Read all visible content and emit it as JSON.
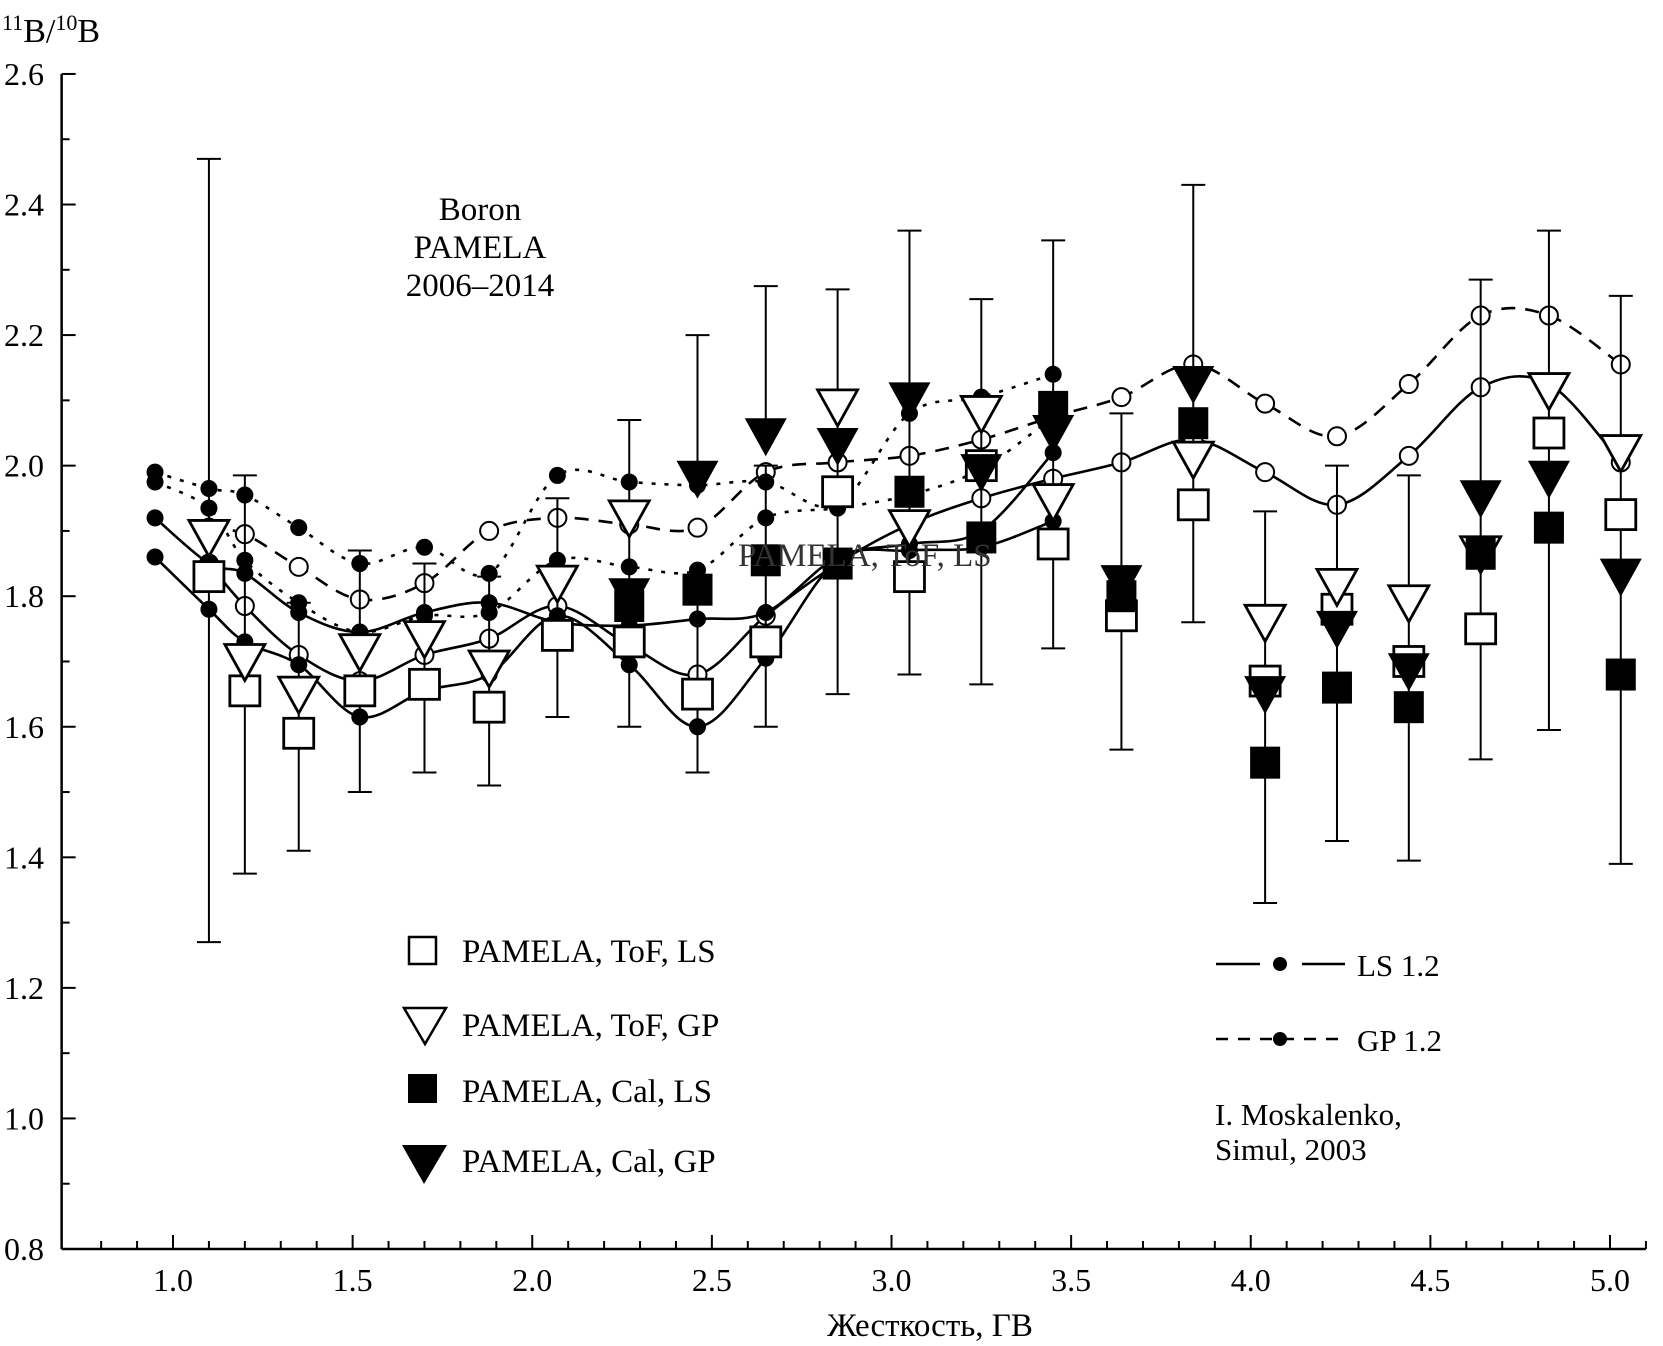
{
  "chart_data": {
    "type": "scatter",
    "title": "",
    "xlabel": "Жесткость, ГВ",
    "ylabel": {
      "prefix_sup": "11",
      "base": "B/",
      "mid_sup": "10",
      "end": "B"
    },
    "xlim": [
      0.69,
      5.1
    ],
    "ylim": [
      0.8,
      2.6
    ],
    "x_ticks": [
      "1.0",
      "1.5",
      "2.0",
      "2.5",
      "3.0",
      "3.5",
      "4.0",
      "4.5",
      "5.0"
    ],
    "x_tick_values": [
      1.0,
      1.5,
      2.0,
      2.5,
      3.0,
      3.5,
      4.0,
      4.5,
      5.0
    ],
    "y_ticks": [
      "0.8",
      "1.0",
      "1.2",
      "1.4",
      "1.6",
      "1.8",
      "2.0",
      "2.2",
      "2.4",
      "2.6"
    ],
    "y_tick_values": [
      0.8,
      1.0,
      1.2,
      1.4,
      1.6,
      1.8,
      2.0,
      2.2,
      2.4,
      2.6
    ],
    "grid": false,
    "annotation": [
      "Boron",
      "PAMELA",
      "2006–2014"
    ],
    "overlap_label": "PAMELA, ToF, LS",
    "credit": [
      "I. Moskalenko,",
      "Simul, 2003"
    ],
    "legend_left": [
      {
        "name": "PAMELA, ToF, LS",
        "marker": "open-square"
      },
      {
        "name": "PAMELA, ToF, GP",
        "marker": "open-triangle-down"
      },
      {
        "name": "PAMELA, Cal, LS",
        "marker": "filled-square"
      },
      {
        "name": "PAMELA, Cal, GP",
        "marker": "filled-triangle-down"
      }
    ],
    "legend_right": [
      {
        "name": "LS 1.2",
        "style": "solid"
      },
      {
        "name": "GP 1.2",
        "style": "dashed"
      }
    ],
    "series": [
      {
        "name": "PAMELA, ToF, LS",
        "marker": "open-square",
        "points": [
          {
            "x": 1.1,
            "y": 1.83,
            "lo": 1.27,
            "hi": 2.47
          },
          {
            "x": 1.2,
            "y": 1.655,
            "lo": 1.375,
            "hi": 1.985
          },
          {
            "x": 1.35,
            "y": 1.59,
            "lo": 1.41,
            "hi": 1.79
          },
          {
            "x": 1.52,
            "y": 1.655,
            "lo": 1.5,
            "hi": 1.87
          },
          {
            "x": 1.7,
            "y": 1.665,
            "lo": 1.53,
            "hi": 1.85
          },
          {
            "x": 1.88,
            "y": 1.63,
            "lo": 1.51,
            "hi": 1.83
          },
          {
            "x": 2.07,
            "y": 1.74,
            "lo": 1.615,
            "hi": 1.95
          },
          {
            "x": 2.27,
            "y": 1.73,
            "lo": 1.6,
            "hi": 2.07
          },
          {
            "x": 2.46,
            "y": 1.65,
            "lo": 1.53,
            "hi": 1.83
          },
          {
            "x": 2.65,
            "y": 1.73,
            "lo": 1.6,
            "hi": 2.0
          },
          {
            "x": 2.85,
            "y": 1.96,
            "lo": 1.65,
            "hi": 2.27
          },
          {
            "x": 3.05,
            "y": 1.83,
            "lo": 1.68,
            "hi": 2.36
          },
          {
            "x": 3.25,
            "y": 2.0,
            "lo": 1.665,
            "hi": 2.255
          },
          {
            "x": 3.45,
            "y": 1.88,
            "lo": 1.72,
            "hi": 2.345
          },
          {
            "x": 3.64,
            "y": 1.77,
            "lo": 1.565,
            "hi": 2.08
          },
          {
            "x": 3.84,
            "y": 1.94,
            "lo": 1.76,
            "hi": 2.43
          },
          {
            "x": 4.04,
            "y": 1.67,
            "lo": 1.33,
            "hi": 1.93
          },
          {
            "x": 4.24,
            "y": 1.78,
            "lo": 1.425,
            "hi": 2.0
          },
          {
            "x": 4.44,
            "y": 1.7,
            "lo": 1.395,
            "hi": 1.985
          },
          {
            "x": 4.64,
            "y": 1.75,
            "lo": 1.55,
            "hi": 2.285
          },
          {
            "x": 4.83,
            "y": 2.05,
            "lo": 1.595,
            "hi": 2.36
          },
          {
            "x": 5.03,
            "y": 1.925,
            "lo": 1.39,
            "hi": 2.26
          }
        ]
      },
      {
        "name": "PAMELA, ToF, GP",
        "marker": "open-triangle-down",
        "points": [
          {
            "x": 1.1,
            "y": 1.89
          },
          {
            "x": 1.2,
            "y": 1.7
          },
          {
            "x": 1.35,
            "y": 1.65
          },
          {
            "x": 1.52,
            "y": 1.715
          },
          {
            "x": 1.7,
            "y": 1.735
          },
          {
            "x": 1.88,
            "y": 1.69
          },
          {
            "x": 2.07,
            "y": 1.82
          },
          {
            "x": 2.27,
            "y": 1.92
          },
          {
            "x": 2.85,
            "y": 2.09
          },
          {
            "x": 3.05,
            "y": 1.905
          },
          {
            "x": 3.25,
            "y": 2.08
          },
          {
            "x": 3.45,
            "y": 1.945
          },
          {
            "x": 3.84,
            "y": 2.01
          },
          {
            "x": 4.04,
            "y": 1.76
          },
          {
            "x": 4.24,
            "y": 1.815
          },
          {
            "x": 4.44,
            "y": 1.79
          },
          {
            "x": 4.64,
            "y": 1.865
          },
          {
            "x": 4.83,
            "y": 2.115
          },
          {
            "x": 5.03,
            "y": 2.02
          }
        ]
      },
      {
        "name": "PAMELA, Cal, LS",
        "marker": "filled-square",
        "points": [
          {
            "x": 2.27,
            "y": 1.785
          },
          {
            "x": 2.46,
            "y": 1.81
          },
          {
            "x": 2.65,
            "y": 1.855
          },
          {
            "x": 2.85,
            "y": 1.85
          },
          {
            "x": 3.05,
            "y": 1.96
          },
          {
            "x": 3.25,
            "y": 1.89
          },
          {
            "x": 3.45,
            "y": 2.09
          },
          {
            "x": 3.64,
            "y": 1.8
          },
          {
            "x": 3.84,
            "y": 2.065
          },
          {
            "x": 4.04,
            "y": 1.545
          },
          {
            "x": 4.24,
            "y": 1.66
          },
          {
            "x": 4.44,
            "y": 1.63
          },
          {
            "x": 4.64,
            "y": 1.865
          },
          {
            "x": 4.83,
            "y": 1.905
          },
          {
            "x": 5.03,
            "y": 1.68
          }
        ]
      },
      {
        "name": "PAMELA, Cal, GP",
        "marker": "filled-triangle-down",
        "points": [
          {
            "x": 2.27,
            "y": 1.8
          },
          {
            "x": 2.46,
            "y": 1.98,
            "hi": 2.2
          },
          {
            "x": 2.65,
            "y": 2.045,
            "hi": 2.275
          },
          {
            "x": 2.85,
            "y": 2.03
          },
          {
            "x": 3.05,
            "y": 2.1
          },
          {
            "x": 3.25,
            "y": 1.99
          },
          {
            "x": 3.45,
            "y": 2.05
          },
          {
            "x": 3.64,
            "y": 1.82
          },
          {
            "x": 3.84,
            "y": 2.125
          },
          {
            "x": 4.04,
            "y": 1.65
          },
          {
            "x": 4.24,
            "y": 1.75
          },
          {
            "x": 4.44,
            "y": 1.685
          },
          {
            "x": 4.64,
            "y": 1.95
          },
          {
            "x": 4.83,
            "y": 1.98
          },
          {
            "x": 5.03,
            "y": 1.83
          }
        ]
      }
    ],
    "model_curves": [
      {
        "name": "LS 1.2",
        "style": "solid",
        "dot": "open",
        "x": [
          1.1,
          1.2,
          1.35,
          1.52,
          1.7,
          1.88,
          2.07,
          2.27,
          2.46,
          2.65,
          2.85,
          3.05,
          3.25,
          3.45,
          3.64,
          3.84,
          4.04,
          4.24,
          4.44,
          4.64,
          4.83,
          5.03
        ],
        "y": [
          1.85,
          1.785,
          1.71,
          1.67,
          1.71,
          1.735,
          1.785,
          1.725,
          1.68,
          1.77,
          1.85,
          1.91,
          1.95,
          1.98,
          2.005,
          2.04,
          1.99,
          1.94,
          2.015,
          2.12,
          2.125,
          2.005
        ]
      },
      {
        "name": "GP 1.2",
        "style": "dashed",
        "dot": "open",
        "x": [
          1.1,
          1.2,
          1.35,
          1.52,
          1.7,
          1.88,
          2.07,
          2.27,
          2.46,
          2.65,
          2.85,
          3.05,
          3.25,
          3.45,
          3.64,
          3.84,
          4.04,
          4.24,
          4.44,
          4.64,
          4.83,
          5.03
        ],
        "y": [
          1.905,
          1.895,
          1.845,
          1.795,
          1.82,
          1.9,
          1.92,
          1.91,
          1.905,
          1.99,
          2.005,
          2.015,
          2.04,
          2.075,
          2.105,
          2.155,
          2.095,
          2.045,
          2.125,
          2.23,
          2.23,
          2.155
        ]
      },
      {
        "name": "LS variant upper",
        "style": "dotted",
        "dot": "filled",
        "x": [
          0.95,
          1.1,
          1.2,
          1.35,
          1.52,
          1.7,
          1.88,
          2.07,
          2.27,
          2.46,
          2.65,
          2.85,
          3.05,
          3.25,
          3.45
        ],
        "y": [
          1.99,
          1.965,
          1.955,
          1.905,
          1.85,
          1.875,
          1.835,
          1.985,
          1.975,
          1.97,
          1.975,
          1.94,
          2.08,
          2.105,
          2.14
        ]
      },
      {
        "name": "LS variant lower",
        "style": "solid",
        "dot": "filled",
        "x": [
          0.95,
          1.1,
          1.2,
          1.35,
          1.52,
          1.7,
          1.88,
          2.07,
          2.27,
          2.46,
          2.65,
          2.85,
          3.05,
          3.25,
          3.45
        ],
        "y": [
          1.86,
          1.78,
          1.73,
          1.695,
          1.615,
          1.655,
          1.68,
          1.77,
          1.695,
          1.6,
          1.705,
          1.855,
          1.87,
          1.875,
          1.915
        ]
      },
      {
        "name": "LS variant middle",
        "style": "solid",
        "dot": "filled",
        "x": [
          0.95,
          1.1,
          1.2,
          1.35,
          1.52,
          1.7,
          1.88,
          2.07,
          2.27,
          2.46,
          2.65,
          2.85,
          3.05,
          3.25,
          3.45
        ],
        "y": [
          1.92,
          1.85,
          1.835,
          1.775,
          1.745,
          1.775,
          1.79,
          1.76,
          1.755,
          1.765,
          1.775,
          1.86,
          1.88,
          1.9,
          2.02
        ]
      },
      {
        "name": "GP variant",
        "style": "dotted",
        "dot": "filled",
        "x": [
          0.95,
          1.1,
          1.2,
          1.35,
          1.52,
          1.7,
          1.88,
          2.07,
          2.27,
          2.46,
          2.65,
          2.85,
          3.05,
          3.25,
          3.45
        ],
        "y": [
          1.975,
          1.935,
          1.855,
          1.79,
          1.745,
          1.77,
          1.775,
          1.855,
          1.845,
          1.84,
          1.92,
          1.935,
          1.955,
          1.995,
          2.075
        ]
      }
    ]
  }
}
